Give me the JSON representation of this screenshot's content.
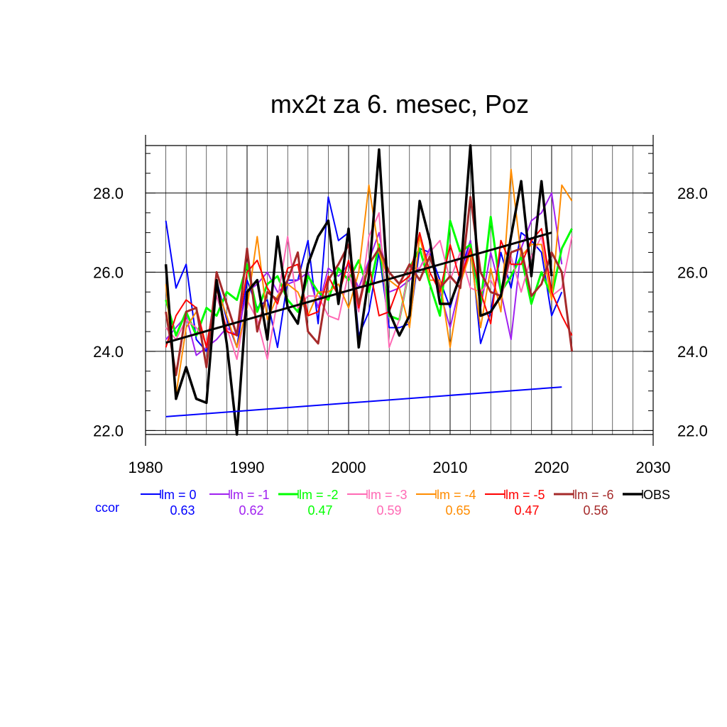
{
  "chart_data": {
    "type": "line",
    "title": "mx2t za 6. mesec, Poz",
    "xlabel": "",
    "ylabel": "",
    "xlim": [
      1980,
      2030
    ],
    "ylim": [
      21.9,
      29.2
    ],
    "x_ticks": [
      1980,
      1990,
      2000,
      2010,
      2020,
      2030
    ],
    "x_tick_labels": [
      "1980",
      "1990",
      "2000",
      "2010",
      "2020",
      "2030"
    ],
    "y_ticks": [
      22,
      24,
      26,
      28
    ],
    "y_tick_labels": [
      "22.0",
      "24.0",
      "26.0",
      "28.0"
    ],
    "grid": true,
    "legend_position": "bottom",
    "ccor_label": "ccor",
    "series": [
      {
        "name": "lm = 0",
        "ccor": "0.63",
        "color": "#0000ff",
        "width": 2,
        "x": [
          1982,
          1983,
          1984,
          1985,
          1986,
          1987,
          1988,
          1989,
          1990,
          1991,
          1992,
          1993,
          1994,
          1995,
          1996,
          1997,
          1998,
          1999,
          2000,
          2001,
          2002,
          2003,
          2004,
          2005,
          2006,
          2007,
          2008,
          2009,
          2010,
          2011,
          2012,
          2013,
          2014,
          2015,
          2016,
          2017,
          2018,
          2019,
          2020,
          2021
        ],
        "values": [
          27.3,
          25.6,
          26.2,
          24.3,
          24.0,
          25.8,
          24.8,
          24.1,
          25.8,
          25.1,
          25.3,
          24.1,
          25.8,
          25.8,
          26.8,
          24.7,
          27.9,
          26.8,
          27.0,
          24.4,
          25.0,
          26.5,
          24.6,
          24.6,
          24.7,
          26.6,
          26.5,
          25.8,
          25.1,
          26.0,
          26.8,
          24.2,
          25.0,
          26.5,
          25.6,
          27.0,
          26.8,
          26.5,
          24.9,
          25.5
        ]
      },
      {
        "name": "lm = -1",
        "ccor": "0.62",
        "color": "#a020f0",
        "width": 2,
        "x": [
          1982,
          1983,
          1984,
          1985,
          1986,
          1987,
          1988,
          1989,
          1990,
          1991,
          1992,
          1993,
          1994,
          1995,
          1996,
          1997,
          1998,
          1999,
          2000,
          2001,
          2002,
          2003,
          2004,
          2005,
          2006,
          2007,
          2008,
          2009,
          2010,
          2011,
          2012,
          2013,
          2014,
          2015,
          2016,
          2017,
          2018,
          2019,
          2020,
          2021
        ],
        "values": [
          24.3,
          24.6,
          24.9,
          23.9,
          24.1,
          24.3,
          24.6,
          24.4,
          25.5,
          25.7,
          26.0,
          25.5,
          25.7,
          25.8,
          26.0,
          25.1,
          26.1,
          25.9,
          26.2,
          25.6,
          26.3,
          27.0,
          25.5,
          25.6,
          25.8,
          26.1,
          26.6,
          25.5,
          24.6,
          25.7,
          26.8,
          25.1,
          26.5,
          25.5,
          24.3,
          26.6,
          27.3,
          27.5,
          28.0,
          26.2
        ]
      },
      {
        "name": "lm = -2",
        "ccor": "0.47",
        "color": "#00ff00",
        "width": 3,
        "x": [
          1982,
          1983,
          1984,
          1985,
          1986,
          1987,
          1988,
          1989,
          1990,
          1991,
          1992,
          1993,
          1994,
          1995,
          1996,
          1997,
          1998,
          1999,
          2000,
          2001,
          2002,
          2003,
          2004,
          2005,
          2006,
          2007,
          2008,
          2009,
          2010,
          2011,
          2012,
          2013,
          2014,
          2015,
          2016,
          2017,
          2018,
          2019,
          2020,
          2021,
          2022
        ],
        "values": [
          25.3,
          24.4,
          25.0,
          24.4,
          25.1,
          24.9,
          25.5,
          25.3,
          26.2,
          25.0,
          25.7,
          25.9,
          25.3,
          25.0,
          25.9,
          25.5,
          25.3,
          26.1,
          25.8,
          26.3,
          25.5,
          26.7,
          24.9,
          24.8,
          26.1,
          26.6,
          25.7,
          24.9,
          27.3,
          26.5,
          26.7,
          25.2,
          27.4,
          25.5,
          25.9,
          26.4,
          25.2,
          26.0,
          25.4,
          26.6,
          27.1
        ]
      },
      {
        "name": "lm = -3",
        "ccor": "0.59",
        "color": "#ff69b4",
        "width": 2,
        "x": [
          1982,
          1983,
          1984,
          1985,
          1986,
          1987,
          1988,
          1989,
          1990,
          1991,
          1992,
          1993,
          1994,
          1995,
          1996,
          1997,
          1998,
          1999,
          2000,
          2001,
          2002,
          2003,
          2004,
          2005,
          2006,
          2007,
          2008,
          2009,
          2010,
          2011,
          2012,
          2013,
          2014,
          2015,
          2016,
          2017,
          2018,
          2019,
          2020,
          2021,
          2022
        ],
        "values": [
          24.6,
          24.3,
          24.8,
          24.6,
          24.2,
          25.4,
          24.6,
          23.8,
          25.3,
          24.8,
          23.8,
          25.3,
          26.9,
          25.1,
          25.4,
          25.4,
          24.9,
          24.8,
          26.0,
          25.0,
          26.9,
          27.5,
          24.1,
          24.8,
          26.1,
          26.1,
          26.5,
          26.8,
          25.8,
          26.5,
          25.6,
          25.5,
          25.8,
          25.3,
          26.4,
          25.5,
          26.4,
          26.9,
          25.4,
          25.6,
          26.9
        ]
      },
      {
        "name": "lm = -4",
        "ccor": "0.65",
        "color": "#ff8c00",
        "width": 2,
        "x": [
          1982,
          1983,
          1984,
          1985,
          1986,
          1987,
          1988,
          1989,
          1990,
          1991,
          1992,
          1993,
          1994,
          1995,
          1996,
          1997,
          1998,
          1999,
          2000,
          2001,
          2002,
          2003,
          2004,
          2005,
          2006,
          2007,
          2008,
          2009,
          2010,
          2011,
          2012,
          2013,
          2014,
          2015,
          2016,
          2017,
          2018,
          2019,
          2020,
          2021,
          2022
        ],
        "values": [
          25.7,
          22.9,
          24.6,
          25.0,
          24.1,
          25.6,
          24.9,
          24.1,
          25.1,
          26.9,
          24.8,
          25.4,
          25.7,
          25.5,
          24.9,
          25.5,
          25.5,
          25.7,
          25.1,
          26.0,
          28.2,
          26.5,
          25.8,
          25.6,
          24.6,
          26.9,
          25.8,
          25.8,
          24.1,
          25.7,
          26.5,
          24.6,
          26.1,
          25.0,
          28.6,
          26.4,
          26.7,
          26.7,
          25.3,
          28.2,
          27.8
        ]
      },
      {
        "name": "lm = -5",
        "ccor": "0.47",
        "color": "#ff0000",
        "width": 2,
        "x": [
          1982,
          1983,
          1984,
          1985,
          1986,
          1987,
          1988,
          1989,
          1990,
          1991,
          1992,
          1993,
          1994,
          1995,
          1996,
          1997,
          1998,
          1999,
          2000,
          2001,
          2002,
          2003,
          2004,
          2005,
          2006,
          2007,
          2008,
          2009,
          2010,
          2011,
          2012,
          2013,
          2014,
          2015,
          2016,
          2017,
          2018,
          2019,
          2020,
          2021,
          2022
        ],
        "values": [
          24.1,
          24.9,
          25.3,
          25.1,
          24.1,
          25.6,
          24.5,
          24.4,
          26.0,
          26.3,
          25.6,
          25.2,
          26.1,
          26.2,
          24.9,
          25.0,
          25.9,
          25.4,
          26.3,
          25.1,
          26.2,
          24.9,
          25.0,
          25.7,
          25.9,
          27.0,
          26.0,
          25.5,
          26.7,
          25.8,
          26.6,
          25.5,
          24.7,
          26.8,
          26.2,
          26.2,
          26.8,
          27.1,
          25.5,
          24.9,
          24.4
        ]
      },
      {
        "name": "lm = -6",
        "ccor": "0.56",
        "color": "#a52a2a",
        "width": 3,
        "x": [
          1982,
          1983,
          1984,
          1985,
          1986,
          1987,
          1988,
          1989,
          1990,
          1991,
          1992,
          1993,
          1994,
          1995,
          1996,
          1997,
          1998,
          1999,
          2000,
          2001,
          2002,
          2003,
          2004,
          2005,
          2006,
          2007,
          2008,
          2009,
          2010,
          2011,
          2012,
          2013,
          2014,
          2015,
          2016,
          2017,
          2018,
          2019,
          2020,
          2021,
          2022
        ],
        "values": [
          25.0,
          23.4,
          25.0,
          25.1,
          23.6,
          26.0,
          25.2,
          24.4,
          26.6,
          24.5,
          25.5,
          25.3,
          25.8,
          26.5,
          24.5,
          24.2,
          25.8,
          26.2,
          26.7,
          25.2,
          26.2,
          26.6,
          26.0,
          25.7,
          26.2,
          25.8,
          26.4,
          25.6,
          25.9,
          25.6,
          27.9,
          26.0,
          25.5,
          25.4,
          26.5,
          26.6,
          25.4,
          25.7,
          26.5,
          26.0,
          24.0
        ]
      },
      {
        "name": "OBS",
        "ccor": "",
        "color": "#000000",
        "width": 3.5,
        "x": [
          1982,
          1983,
          1984,
          1985,
          1986,
          1987,
          1988,
          1989,
          1990,
          1991,
          1992,
          1993,
          1994,
          1995,
          1996,
          1997,
          1998,
          1999,
          2000,
          2001,
          2002,
          2003,
          2004,
          2005,
          2006,
          2007,
          2008,
          2009,
          2010,
          2011,
          2012,
          2013,
          2014,
          2015,
          2016,
          2017,
          2018,
          2019,
          2020
        ],
        "values": [
          26.2,
          22.8,
          23.6,
          22.8,
          22.7,
          25.8,
          24.2,
          21.9,
          25.5,
          25.8,
          24.3,
          26.9,
          25.1,
          24.7,
          26.2,
          26.9,
          27.3,
          25.2,
          27.1,
          24.1,
          25.9,
          29.1,
          25.0,
          24.4,
          24.9,
          27.8,
          26.8,
          25.2,
          25.2,
          25.9,
          29.2,
          24.9,
          25.0,
          25.4,
          26.9,
          28.3,
          25.9,
          28.3,
          25.9
        ]
      }
    ],
    "trend_lines": [
      {
        "name": "lm = 0 trend",
        "color": "#0000ff",
        "width": 2,
        "x": [
          1982,
          2021
        ],
        "values": [
          22.35,
          23.1
        ]
      },
      {
        "name": "OBS trend",
        "color": "#000000",
        "width": 3,
        "x": [
          1982,
          2020
        ],
        "values": [
          24.22,
          27.0
        ]
      }
    ]
  }
}
